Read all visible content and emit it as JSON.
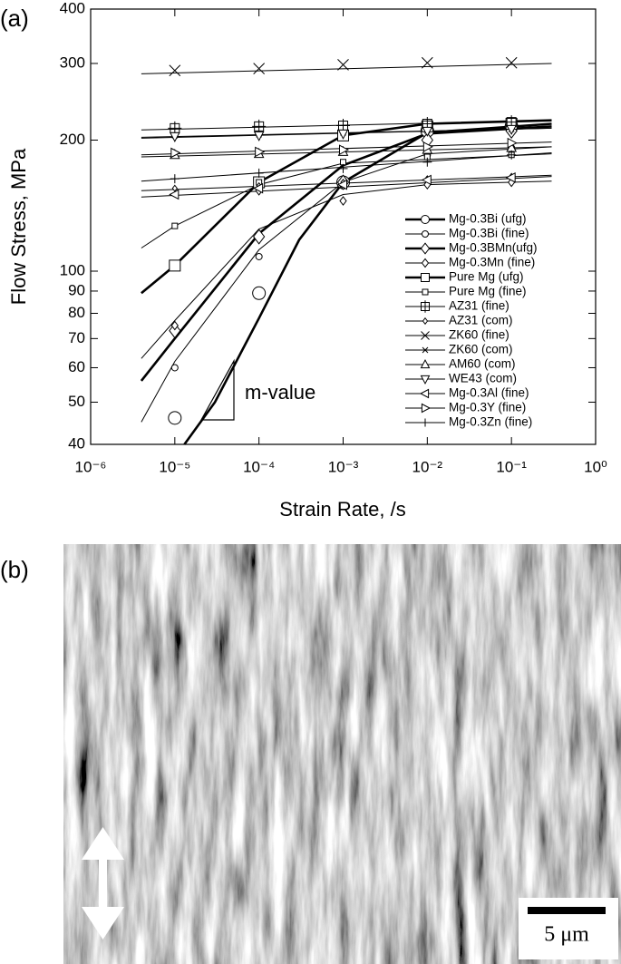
{
  "chart_data": {
    "type": "line",
    "panel_label": "(a)",
    "x_label": "Strain Rate, /s",
    "y_label": "Flow Stress, MPa",
    "xscale": "log",
    "yscale": "log",
    "xlim": [
      1e-06,
      1
    ],
    "ylim": [
      40,
      400
    ],
    "xticks": [
      {
        "value": 1e-06,
        "label": "10⁻⁶"
      },
      {
        "value": 1e-05,
        "label": "10⁻⁵"
      },
      {
        "value": 0.0001,
        "label": "10⁻⁴"
      },
      {
        "value": 0.001,
        "label": "10⁻³"
      },
      {
        "value": 0.01,
        "label": "10⁻²"
      },
      {
        "value": 0.1,
        "label": "10⁻¹"
      },
      {
        "value": 1,
        "label": "10⁰"
      }
    ],
    "yticks": [
      40,
      50,
      60,
      70,
      80,
      90,
      100,
      200,
      300,
      400
    ],
    "legend": "lower right",
    "annotations": [
      "m-value"
    ],
    "x": [
      1e-05,
      0.0001,
      0.001,
      0.01,
      0.1
    ],
    "series": [
      {
        "name": "Mg-0.3Bi (ufg)",
        "color": "#000000",
        "marker": "circle",
        "marker_size": 7,
        "linewidth": 2.6,
        "values": [
          46,
          89,
          160,
          210,
          215
        ],
        "line_x": [
          1.3e-05,
          3e-05,
          0.0001,
          0.0003,
          0.001,
          0.01,
          0.3
        ],
        "line_values": [
          40,
          50,
          78,
          118,
          160,
          208,
          218
        ]
      },
      {
        "name": "Mg-0.3Bi (fine)",
        "color": "#000000",
        "marker": "circle",
        "marker_size": 3.5,
        "linewidth": 1,
        "values": [
          60,
          108,
          157,
          185,
          192
        ],
        "line_x": [
          4e-06,
          1e-05,
          0.0001,
          0.001,
          0.01,
          0.3
        ],
        "line_values": [
          45,
          62,
          112,
          160,
          186,
          193
        ]
      },
      {
        "name": "Mg-0.3BMn(ufg)",
        "color": "#000000",
        "marker": "diamond",
        "marker_size": 6,
        "linewidth": 2.6,
        "values": [
          73,
          120,
          160,
          200,
          210
        ],
        "line_x": [
          4e-06,
          1e-05,
          0.0001,
          0.001,
          0.01,
          0.3
        ],
        "line_values": [
          56,
          70,
          122,
          175,
          207,
          215
        ]
      },
      {
        "name": "Mg-0.3Mn (fine)",
        "color": "#000000",
        "marker": "diamond",
        "marker_size": 3.5,
        "linewidth": 1,
        "values": [
          75,
          153,
          145,
          158,
          160
        ],
        "line_x": [
          4e-06,
          1e-05,
          0.0001,
          0.001,
          0.01,
          0.3
        ],
        "line_values": [
          63,
          77,
          125,
          150,
          158,
          161
        ]
      },
      {
        "name": "Pure Mg (ufg)",
        "color": "#000000",
        "marker": "square",
        "marker_size": 6,
        "linewidth": 2.6,
        "values": [
          103,
          160,
          205,
          215,
          218
        ],
        "line_x": [
          4e-06,
          1e-05,
          0.0001,
          0.001,
          0.01,
          0.3
        ],
        "line_values": [
          89,
          103,
          160,
          205,
          218,
          222
        ]
      },
      {
        "name": "Pure Mg (fine)",
        "color": "#000000",
        "marker": "square",
        "marker_size": 3,
        "linewidth": 1,
        "values": [
          127,
          160,
          178,
          183,
          185
        ],
        "line_x": [
          4e-06,
          1e-05,
          0.0001,
          0.001,
          0.3
        ],
        "line_values": [
          113,
          127,
          158,
          177,
          186
        ]
      },
      {
        "name": "AZ31 (fine)",
        "color": "#000000",
        "marker": "square-plus",
        "marker_size": 5,
        "linewidth": 1,
        "values": [
          213,
          215,
          216,
          218,
          220
        ],
        "line_x": [
          4e-06,
          0.3
        ],
        "line_values": [
          211,
          222
        ]
      },
      {
        "name": "AZ31 (com)",
        "color": "#000000",
        "marker": "diamond",
        "marker_size": 2.5,
        "linewidth": 1,
        "values": [
          155,
          157,
          160,
          163,
          165
        ],
        "line_x": [
          4e-06,
          0.3
        ],
        "line_values": [
          153,
          166
        ]
      },
      {
        "name": "ZK60 (fine)",
        "color": "#000000",
        "marker": "x",
        "marker_size": 6,
        "linewidth": 1,
        "values": [
          289,
          292,
          298,
          301,
          301
        ],
        "line_x": [
          4e-06,
          0.3
        ],
        "line_values": [
          284,
          300
        ]
      },
      {
        "name": "ZK60 (com)",
        "color": "#000000",
        "marker": "x",
        "marker_size": 3,
        "linewidth": 1,
        "values": [
          205,
          206,
          208,
          210,
          212
        ],
        "line_x": [
          4e-06,
          0.3
        ],
        "line_values": [
          203,
          213
        ]
      },
      {
        "name": "AM60 (com)",
        "color": "#000000",
        "marker": "triangle-up",
        "marker_size": 5,
        "linewidth": 1,
        "values": [
          185,
          186,
          188,
          190,
          192
        ],
        "line_x": [
          4e-06,
          0.3
        ],
        "line_values": [
          183,
          193
        ]
      },
      {
        "name": "WE43 (com)",
        "color": "#000000",
        "marker": "triangle-down",
        "marker_size": 5,
        "linewidth": 1,
        "values": [
          204,
          205,
          207,
          210,
          212
        ],
        "line_x": [
          4e-06,
          0.3
        ],
        "line_values": [
          202,
          213
        ]
      },
      {
        "name": "Mg-0.3Al (fine)",
        "color": "#000000",
        "marker": "triangle-left",
        "marker_size": 5,
        "linewidth": 1,
        "values": [
          150,
          155,
          158,
          162,
          164
        ],
        "line_x": [
          4e-06,
          0.3
        ],
        "line_values": [
          148,
          165
        ]
      },
      {
        "name": "Mg-0.3Y (fine)",
        "color": "#000000",
        "marker": "triangle-right",
        "marker_size": 5,
        "linewidth": 1,
        "values": [
          187,
          188,
          190,
          193,
          197
        ],
        "line_x": [
          4e-06,
          0.3
        ],
        "line_values": [
          185,
          198
        ]
      },
      {
        "name": "Mg-0.3Zn (fine)",
        "color": "#000000",
        "marker": "plus",
        "marker_size": 5,
        "linewidth": 1,
        "values": [
          163,
          168,
          172,
          178,
          185
        ],
        "line_x": [
          4e-06,
          0.3
        ],
        "line_values": [
          161,
          187
        ]
      }
    ]
  },
  "image": {
    "panel_label": "(b)",
    "scale_bar": "5 μm"
  }
}
